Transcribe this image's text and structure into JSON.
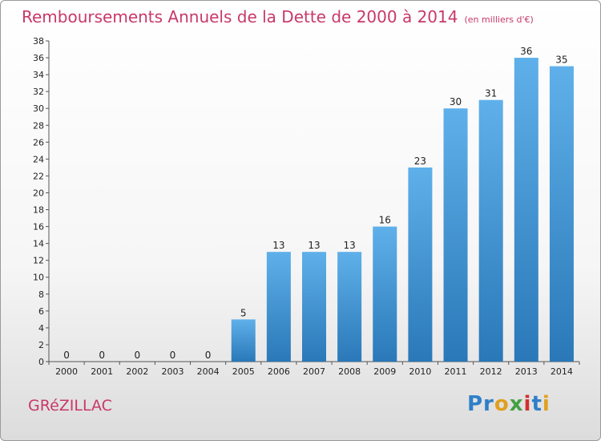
{
  "title": "Remboursements Annuels de la Dette de 2000 à 2014",
  "title_unit": "(en milliers d'€)",
  "commune": "GRéZILLAC",
  "logo": {
    "letters": [
      "Pr",
      "o",
      "x",
      "i",
      "t",
      "i"
    ],
    "text": "Proxiti"
  },
  "colors": {
    "title": "#c8386a",
    "bar_top": "#5fb0ea",
    "bar_bottom": "#2a78b8"
  },
  "chart_data": {
    "type": "bar",
    "categories": [
      "2000",
      "2001",
      "2002",
      "2003",
      "2004",
      "2005",
      "2006",
      "2007",
      "2008",
      "2009",
      "2010",
      "2011",
      "2012",
      "2013",
      "2014"
    ],
    "values": [
      0,
      0,
      0,
      0,
      0,
      5,
      13,
      13,
      13,
      16,
      23,
      30,
      31,
      36,
      35
    ],
    "value_labels": [
      "0",
      "0",
      "0",
      "0",
      "0",
      "5",
      "13",
      "13",
      "13",
      "16",
      "23",
      "30",
      "31",
      "36",
      "35"
    ],
    "ylim": [
      0,
      38
    ],
    "yticks": [
      0,
      2,
      4,
      6,
      8,
      10,
      12,
      14,
      16,
      18,
      20,
      22,
      24,
      26,
      28,
      30,
      32,
      34,
      36,
      38
    ],
    "grid": false
  }
}
